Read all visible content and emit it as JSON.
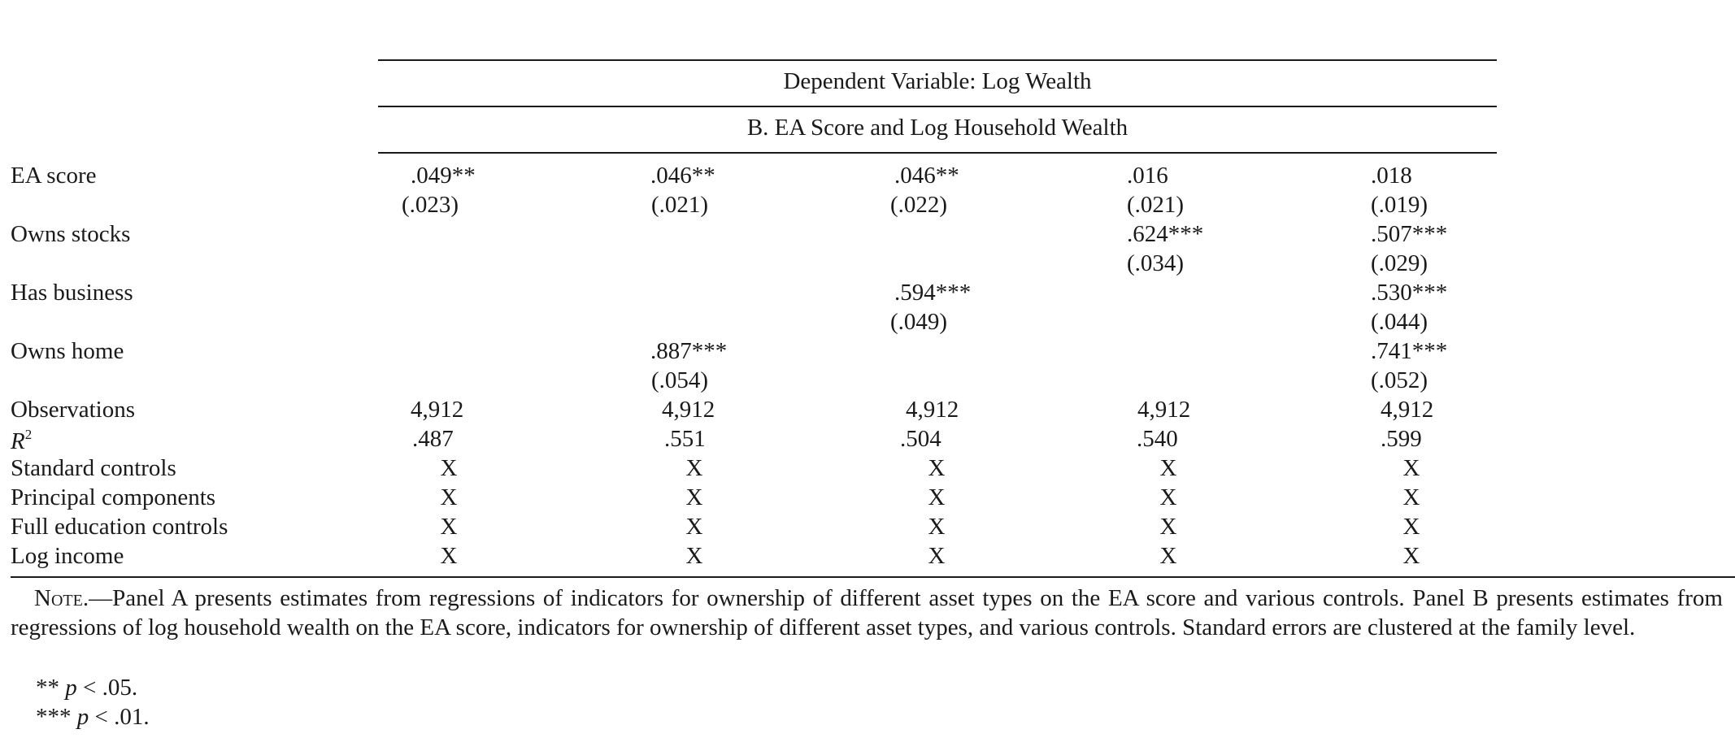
{
  "header": {
    "dependent_variable": "Dependent Variable: Log Wealth",
    "panel_title": "B. EA Score and Log Household Wealth"
  },
  "rows": {
    "ea_score": {
      "label": "EA score",
      "coefs": [
        ".049**",
        ".046**",
        ".046**",
        ".016",
        ".018"
      ],
      "se": [
        "(.023)",
        "(.021)",
        "(.022)",
        "(.021)",
        "(.019)"
      ]
    },
    "owns_stocks": {
      "label": "Owns stocks",
      "coefs": [
        "",
        "",
        "",
        ".624***",
        ".507***"
      ],
      "se": [
        "",
        "",
        "",
        "(.034)",
        "(.029)"
      ]
    },
    "has_business": {
      "label": "Has business",
      "coefs": [
        "",
        "",
        ".594***",
        "",
        ".530***"
      ],
      "se": [
        "",
        "",
        "(.049)",
        "",
        "(.044)"
      ]
    },
    "owns_home": {
      "label": "Owns home",
      "coefs": [
        "",
        ".887***",
        "",
        "",
        ".741***"
      ],
      "se": [
        "",
        "(.054)",
        "",
        "",
        "(.052)"
      ]
    },
    "observations": {
      "label": "Observations",
      "values": [
        "4,912",
        "4,912",
        "4,912",
        "4,912",
        "4,912"
      ]
    },
    "r2": {
      "label_base": "R",
      "label_sup": "2",
      "values": [
        ".487",
        ".551",
        ".504",
        ".540",
        ".599"
      ]
    },
    "standard_controls": {
      "label": "Standard controls",
      "values": [
        "X",
        "X",
        "X",
        "X",
        "X"
      ]
    },
    "principal_components": {
      "label": "Principal components",
      "values": [
        "X",
        "X",
        "X",
        "X",
        "X"
      ]
    },
    "full_education_controls": {
      "label": "Full education controls",
      "values": [
        "X",
        "X",
        "X",
        "X",
        "X"
      ]
    },
    "log_income": {
      "label": "Log income",
      "values": [
        "X",
        "X",
        "X",
        "X",
        "X"
      ]
    }
  },
  "note": {
    "head": "Note.",
    "text": "—Panel A presents estimates from regressions of indicators for ownership of different asset types on the EA score and various controls. Panel B presents estimates from regressions of log household wealth on the EA score, indicators for ownership of different asset types, and various controls. Standard errors are clustered at the family level.",
    "fn1_stars": "**",
    "fn1_p": "p",
    "fn1_rest": " < .05.",
    "fn2_stars": "***",
    "fn2_p": "p",
    "fn2_rest": " < .01."
  }
}
